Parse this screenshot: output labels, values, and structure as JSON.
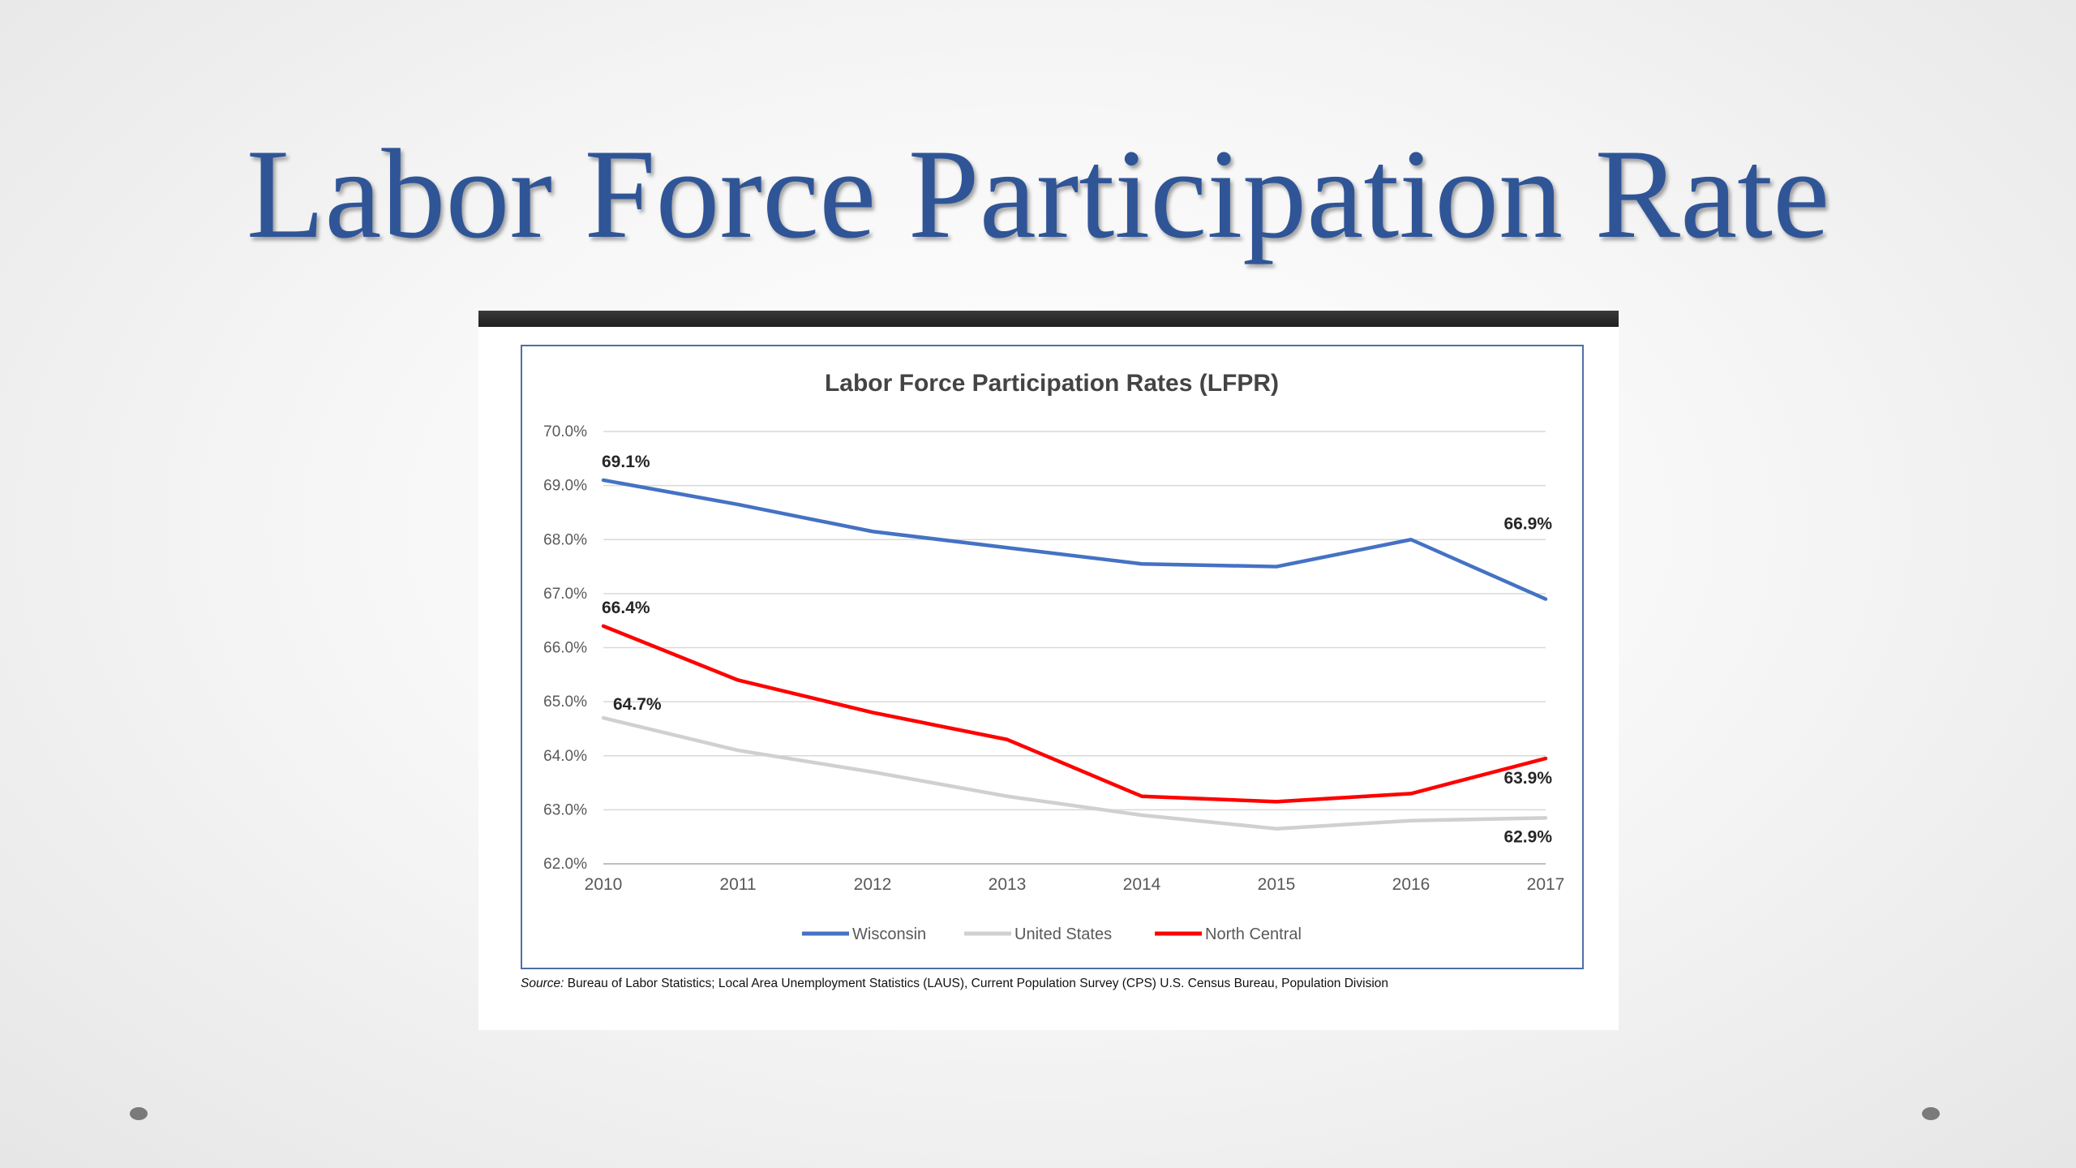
{
  "slide": {
    "title": "Labor Force Participation Rate",
    "source_prefix": "Source:",
    "source_text": " Bureau of Labor Statistics; Local Area Unemployment Statistics (LAUS), Current Population Survey (CPS) U.S. Census Bureau, Population Division"
  },
  "chart_data": {
    "type": "line",
    "title": "Labor Force Participation Rates (LFPR)",
    "xlabel": "",
    "ylabel": "",
    "x": [
      "2010",
      "2011",
      "2012",
      "2013",
      "2014",
      "2015",
      "2016",
      "2017"
    ],
    "ylim": [
      62.0,
      70.0
    ],
    "yticks": [
      62.0,
      63.0,
      64.0,
      65.0,
      66.0,
      67.0,
      68.0,
      69.0,
      70.0
    ],
    "ytick_labels": [
      "62.0%",
      "63.0%",
      "64.0%",
      "65.0%",
      "66.0%",
      "67.0%",
      "68.0%",
      "69.0%",
      "70.0%"
    ],
    "grid": true,
    "legend_position": "bottom",
    "series": [
      {
        "name": "Wisconsin",
        "color": "#4472c4",
        "values": [
          69.1,
          68.65,
          68.15,
          67.85,
          67.55,
          67.5,
          68.0,
          66.9
        ],
        "labels": [
          {
            "index": 0,
            "text": "69.1%"
          },
          {
            "index": 7,
            "text": "66.9%"
          }
        ]
      },
      {
        "name": "United States",
        "color": "#d0d0d0",
        "values": [
          64.7,
          64.1,
          63.7,
          63.25,
          62.9,
          62.65,
          62.8,
          62.85
        ],
        "labels": [
          {
            "index": 0,
            "text": "64.7%"
          },
          {
            "index": 7,
            "text": "62.9%"
          }
        ]
      },
      {
        "name": "North Central",
        "color": "#ff0000",
        "values": [
          66.4,
          65.4,
          64.8,
          64.3,
          63.25,
          63.15,
          63.3,
          63.95
        ],
        "labels": [
          {
            "index": 0,
            "text": "66.4%"
          },
          {
            "index": 7,
            "text": "63.9%"
          }
        ]
      }
    ]
  }
}
